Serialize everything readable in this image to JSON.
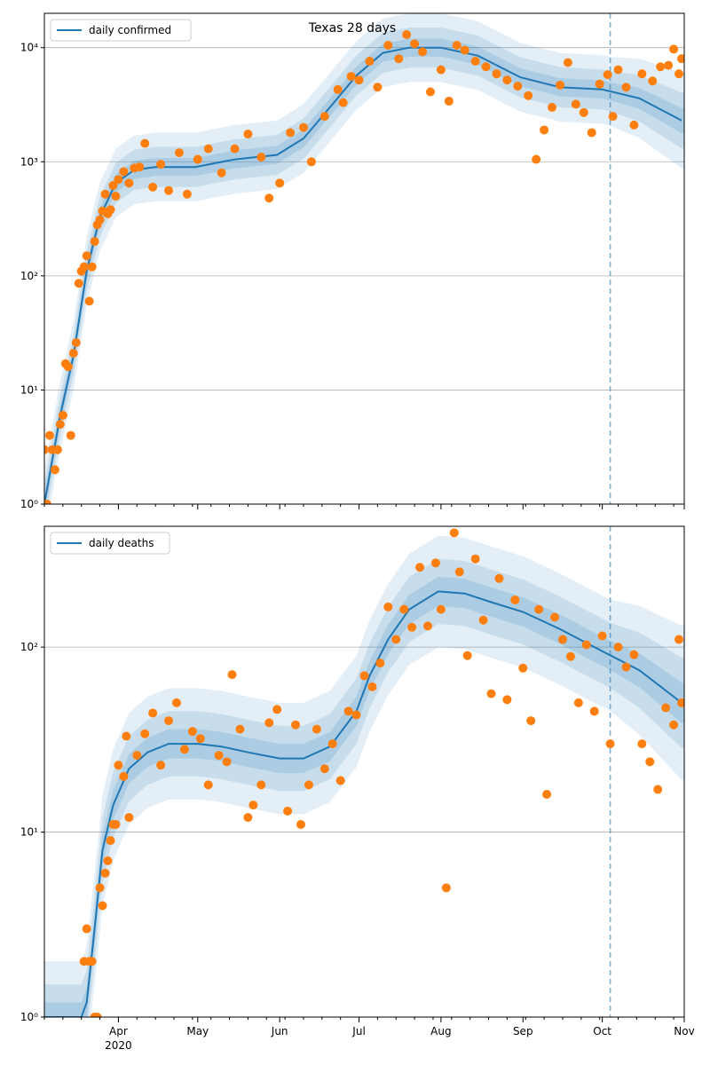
{
  "figure": {
    "title": "Texas 28 days"
  },
  "chart_data": [
    {
      "type": "line",
      "panel": "confirmed",
      "title": "Texas 28 days",
      "yscale": "log",
      "ylim": [
        1,
        20000
      ],
      "ytick_values": [
        1,
        10,
        100,
        1000,
        10000
      ],
      "ytick_labels": [
        "10⁰",
        "10¹",
        "10²",
        "10³",
        "10⁴"
      ],
      "grid": "horizontal",
      "legend_position": "top-left",
      "forecast_start": "2020-10-04",
      "series": [
        {
          "name": "daily confirmed",
          "type": "line",
          "points": [
            [
              "2020-03-04",
              1
            ],
            [
              "2020-03-10",
              6
            ],
            [
              "2020-03-15",
              20
            ],
            [
              "2020-03-20",
              110
            ],
            [
              "2020-03-25",
              330
            ],
            [
              "2020-03-31",
              650
            ],
            [
              "2020-04-07",
              850
            ],
            [
              "2020-04-15",
              900
            ],
            [
              "2020-04-30",
              900
            ],
            [
              "2020-05-15",
              1050
            ],
            [
              "2020-05-31",
              1150
            ],
            [
              "2020-06-10",
              1600
            ],
            [
              "2020-06-20",
              3000
            ],
            [
              "2020-06-30",
              5700
            ],
            [
              "2020-07-10",
              9000
            ],
            [
              "2020-07-20",
              10000
            ],
            [
              "2020-08-01",
              10000
            ],
            [
              "2020-08-15",
              8500
            ],
            [
              "2020-08-31",
              5500
            ],
            [
              "2020-09-15",
              4500
            ],
            [
              "2020-10-01",
              4300
            ],
            [
              "2020-10-15",
              3600
            ],
            [
              "2020-10-31",
              2300
            ]
          ]
        }
      ],
      "observed": [
        [
          "2020-03-04",
          3
        ],
        [
          "2020-03-05",
          1
        ],
        [
          "2020-03-06",
          4
        ],
        [
          "2020-03-07",
          3
        ],
        [
          "2020-03-08",
          2
        ],
        [
          "2020-03-09",
          3
        ],
        [
          "2020-03-10",
          5
        ],
        [
          "2020-03-11",
          6
        ],
        [
          "2020-03-12",
          17
        ],
        [
          "2020-03-13",
          16
        ],
        [
          "2020-03-14",
          4
        ],
        [
          "2020-03-15",
          21
        ],
        [
          "2020-03-16",
          26
        ],
        [
          "2020-03-17",
          86
        ],
        [
          "2020-03-18",
          110
        ],
        [
          "2020-03-19",
          120
        ],
        [
          "2020-03-20",
          150
        ],
        [
          "2020-03-21",
          60
        ],
        [
          "2020-03-22",
          120
        ],
        [
          "2020-03-23",
          200
        ],
        [
          "2020-03-24",
          280
        ],
        [
          "2020-03-25",
          310
        ],
        [
          "2020-03-26",
          370
        ],
        [
          "2020-03-27",
          520
        ],
        [
          "2020-03-28",
          350
        ],
        [
          "2020-03-29",
          380
        ],
        [
          "2020-03-30",
          620
        ],
        [
          "2020-03-31",
          500
        ],
        [
          "2020-04-01",
          700
        ],
        [
          "2020-04-03",
          820
        ],
        [
          "2020-04-05",
          650
        ],
        [
          "2020-04-07",
          880
        ],
        [
          "2020-04-09",
          900
        ],
        [
          "2020-04-11",
          1450
        ],
        [
          "2020-04-14",
          600
        ],
        [
          "2020-04-17",
          950
        ],
        [
          "2020-04-20",
          560
        ],
        [
          "2020-04-24",
          1200
        ],
        [
          "2020-04-27",
          520
        ],
        [
          "2020-05-01",
          1050
        ],
        [
          "2020-05-05",
          1300
        ],
        [
          "2020-05-10",
          800
        ],
        [
          "2020-05-15",
          1300
        ],
        [
          "2020-05-20",
          1750
        ],
        [
          "2020-05-25",
          1100
        ],
        [
          "2020-05-28",
          480
        ],
        [
          "2020-06-01",
          650
        ],
        [
          "2020-06-05",
          1800
        ],
        [
          "2020-06-10",
          2000
        ],
        [
          "2020-06-13",
          1000
        ],
        [
          "2020-06-18",
          2500
        ],
        [
          "2020-06-23",
          4300
        ],
        [
          "2020-06-25",
          3300
        ],
        [
          "2020-06-28",
          5600
        ],
        [
          "2020-07-01",
          5200
        ],
        [
          "2020-07-05",
          7600
        ],
        [
          "2020-07-08",
          4500
        ],
        [
          "2020-07-12",
          10500
        ],
        [
          "2020-07-16",
          8000
        ],
        [
          "2020-07-19",
          13000
        ],
        [
          "2020-07-22",
          10800
        ],
        [
          "2020-07-25",
          9200
        ],
        [
          "2020-07-28",
          4100
        ],
        [
          "2020-08-01",
          6400
        ],
        [
          "2020-08-04",
          3400
        ],
        [
          "2020-08-07",
          10500
        ],
        [
          "2020-08-10",
          9500
        ],
        [
          "2020-08-14",
          7600
        ],
        [
          "2020-08-18",
          6800
        ],
        [
          "2020-08-22",
          5900
        ],
        [
          "2020-08-26",
          5200
        ],
        [
          "2020-08-30",
          4600
        ],
        [
          "2020-09-03",
          3800
        ],
        [
          "2020-09-06",
          1050
        ],
        [
          "2020-09-09",
          1900
        ],
        [
          "2020-09-12",
          3000
        ],
        [
          "2020-09-15",
          4700
        ],
        [
          "2020-09-18",
          7400
        ],
        [
          "2020-09-21",
          3200
        ],
        [
          "2020-09-24",
          2700
        ],
        [
          "2020-09-27",
          1800
        ],
        [
          "2020-09-30",
          4800
        ],
        [
          "2020-10-03",
          5800
        ],
        [
          "2020-10-05",
          2500
        ],
        [
          "2020-10-07",
          6400
        ],
        [
          "2020-10-10",
          4500
        ],
        [
          "2020-10-13",
          2100
        ],
        [
          "2020-10-16",
          5900
        ],
        [
          "2020-10-20",
          5100
        ],
        [
          "2020-10-23",
          6800
        ],
        [
          "2020-10-26",
          7000
        ],
        [
          "2020-10-28",
          9700
        ],
        [
          "2020-10-30",
          5900
        ],
        [
          "2020-10-31",
          8000
        ]
      ]
    },
    {
      "type": "line",
      "panel": "deaths",
      "yscale": "log",
      "ylim": [
        1,
        450
      ],
      "ytick_values": [
        1,
        10,
        100
      ],
      "ytick_labels": [
        "10⁰",
        "10¹",
        "10²"
      ],
      "grid": "horizontal",
      "legend_position": "top-left",
      "forecast_start": "2020-10-04",
      "x_tick_labels": [
        "Apr\n2020",
        "May",
        "Jun",
        "Jul",
        "Aug",
        "Sep",
        "Oct",
        "Nov"
      ],
      "series": [
        {
          "name": "daily deaths",
          "type": "line",
          "points": [
            [
              "2020-03-04",
              1
            ],
            [
              "2020-03-18",
              1
            ],
            [
              "2020-03-20",
              1.2
            ],
            [
              "2020-03-23",
              3
            ],
            [
              "2020-03-26",
              8
            ],
            [
              "2020-03-30",
              14
            ],
            [
              "2020-04-05",
              22
            ],
            [
              "2020-04-12",
              27
            ],
            [
              "2020-04-20",
              30
            ],
            [
              "2020-05-01",
              30
            ],
            [
              "2020-05-10",
              29
            ],
            [
              "2020-05-20",
              27
            ],
            [
              "2020-06-01",
              25
            ],
            [
              "2020-06-10",
              25
            ],
            [
              "2020-06-20",
              29
            ],
            [
              "2020-06-30",
              45
            ],
            [
              "2020-07-05",
              70
            ],
            [
              "2020-07-12",
              110
            ],
            [
              "2020-07-20",
              160
            ],
            [
              "2020-07-31",
              200
            ],
            [
              "2020-08-10",
              195
            ],
            [
              "2020-08-20",
              175
            ],
            [
              "2020-09-01",
              155
            ],
            [
              "2020-09-15",
              125
            ],
            [
              "2020-10-01",
              95
            ],
            [
              "2020-10-15",
              75
            ],
            [
              "2020-10-31",
              50
            ]
          ]
        }
      ],
      "observed": [
        [
          "2020-03-20",
          3
        ],
        [
          "2020-03-19",
          2
        ],
        [
          "2020-03-21",
          2
        ],
        [
          "2020-03-22",
          2
        ],
        [
          "2020-03-23",
          1
        ],
        [
          "2020-03-24",
          1
        ],
        [
          "2020-03-25",
          5
        ],
        [
          "2020-03-26",
          4
        ],
        [
          "2020-03-27",
          6
        ],
        [
          "2020-03-28",
          7
        ],
        [
          "2020-03-29",
          9
        ],
        [
          "2020-03-30",
          11
        ],
        [
          "2020-03-31",
          11
        ],
        [
          "2020-04-01",
          23
        ],
        [
          "2020-04-03",
          20
        ],
        [
          "2020-04-04",
          33
        ],
        [
          "2020-04-05",
          12
        ],
        [
          "2020-04-08",
          26
        ],
        [
          "2020-04-11",
          34
        ],
        [
          "2020-04-14",
          44
        ],
        [
          "2020-04-17",
          23
        ],
        [
          "2020-04-20",
          40
        ],
        [
          "2020-04-23",
          50
        ],
        [
          "2020-04-26",
          28
        ],
        [
          "2020-04-29",
          35
        ],
        [
          "2020-05-02",
          32
        ],
        [
          "2020-05-05",
          18
        ],
        [
          "2020-05-09",
          26
        ],
        [
          "2020-05-12",
          24
        ],
        [
          "2020-05-14",
          71
        ],
        [
          "2020-05-17",
          36
        ],
        [
          "2020-05-20",
          12
        ],
        [
          "2020-05-22",
          14
        ],
        [
          "2020-05-25",
          18
        ],
        [
          "2020-05-28",
          39
        ],
        [
          "2020-05-31",
          46
        ],
        [
          "2020-06-04",
          13
        ],
        [
          "2020-06-07",
          38
        ],
        [
          "2020-06-09",
          11
        ],
        [
          "2020-06-12",
          18
        ],
        [
          "2020-06-15",
          36
        ],
        [
          "2020-06-18",
          22
        ],
        [
          "2020-06-21",
          30
        ],
        [
          "2020-06-24",
          19
        ],
        [
          "2020-06-27",
          45
        ],
        [
          "2020-06-30",
          43
        ],
        [
          "2020-07-03",
          70
        ],
        [
          "2020-07-06",
          61
        ],
        [
          "2020-07-09",
          82
        ],
        [
          "2020-07-12",
          165
        ],
        [
          "2020-07-15",
          110
        ],
        [
          "2020-07-18",
          160
        ],
        [
          "2020-07-21",
          128
        ],
        [
          "2020-07-24",
          270
        ],
        [
          "2020-07-27",
          130
        ],
        [
          "2020-07-30",
          285
        ],
        [
          "2020-08-01",
          160
        ],
        [
          "2020-08-03",
          5
        ],
        [
          "2020-08-06",
          415
        ],
        [
          "2020-08-08",
          255
        ],
        [
          "2020-08-11",
          90
        ],
        [
          "2020-08-14",
          300
        ],
        [
          "2020-08-17",
          140
        ],
        [
          "2020-08-20",
          56
        ],
        [
          "2020-08-23",
          235
        ],
        [
          "2020-08-26",
          52
        ],
        [
          "2020-08-29",
          180
        ],
        [
          "2020-09-01",
          77
        ],
        [
          "2020-09-04",
          40
        ],
        [
          "2020-09-07",
          160
        ],
        [
          "2020-09-10",
          16
        ],
        [
          "2020-09-13",
          145
        ],
        [
          "2020-09-16",
          110
        ],
        [
          "2020-09-19",
          89
        ],
        [
          "2020-09-22",
          50
        ],
        [
          "2020-09-25",
          103
        ],
        [
          "2020-09-28",
          45
        ],
        [
          "2020-10-01",
          115
        ],
        [
          "2020-10-04",
          30
        ],
        [
          "2020-10-07",
          100
        ],
        [
          "2020-10-10",
          78
        ],
        [
          "2020-10-13",
          91
        ],
        [
          "2020-10-16",
          30
        ],
        [
          "2020-10-19",
          24
        ],
        [
          "2020-10-22",
          17
        ],
        [
          "2020-10-25",
          47
        ],
        [
          "2020-10-28",
          38
        ],
        [
          "2020-10-30",
          110
        ],
        [
          "2020-10-31",
          50
        ]
      ]
    }
  ],
  "colors": {
    "line": "#1f77b4",
    "points": "#ff7f0e",
    "band": "#1f77b4",
    "grid": "#b0b0b0",
    "axis": "#000000"
  }
}
